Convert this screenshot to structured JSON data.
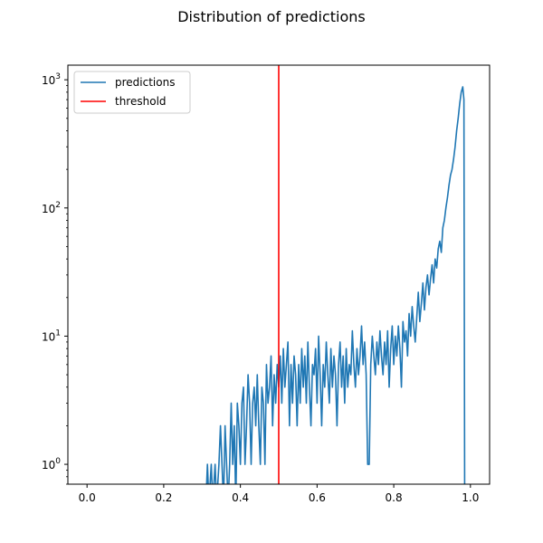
{
  "chart_data": {
    "type": "line",
    "title": "Distribution of predictions",
    "xlabel": "",
    "ylabel": "",
    "xlim": [
      -0.05,
      1.05
    ],
    "ylim": [
      0.7,
      1300
    ],
    "yscale": "log",
    "grid": false,
    "legend_placement": "top-left",
    "x_ticks": [
      0.0,
      0.2,
      0.4,
      0.6,
      0.8,
      1.0
    ],
    "x_tick_labels": [
      "0.0",
      "0.2",
      "0.4",
      "0.6",
      "0.8",
      "1.0"
    ],
    "y_ticks": [
      1,
      10,
      100,
      1000
    ],
    "y_tick_bases": [
      "10",
      "10",
      "10",
      "10"
    ],
    "y_tick_exponents": [
      "0",
      "1",
      "2",
      "3"
    ],
    "series": [
      {
        "name": "predictions",
        "color": "#1f77b4",
        "points": [
          [
            0.31,
            0.5
          ],
          [
            0.314,
            1
          ],
          [
            0.318,
            0.5
          ],
          [
            0.324,
            1
          ],
          [
            0.328,
            0.5
          ],
          [
            0.334,
            1
          ],
          [
            0.338,
            0.5
          ],
          [
            0.344,
            1
          ],
          [
            0.348,
            2
          ],
          [
            0.352,
            1
          ],
          [
            0.356,
            0.5
          ],
          [
            0.36,
            2
          ],
          [
            0.364,
            1
          ],
          [
            0.368,
            0.5
          ],
          [
            0.372,
            1
          ],
          [
            0.376,
            3
          ],
          [
            0.38,
            1
          ],
          [
            0.384,
            2
          ],
          [
            0.388,
            0.5
          ],
          [
            0.392,
            3
          ],
          [
            0.396,
            2
          ],
          [
            0.4,
            1
          ],
          [
            0.404,
            3
          ],
          [
            0.408,
            4
          ],
          [
            0.412,
            1
          ],
          [
            0.416,
            2
          ],
          [
            0.42,
            5
          ],
          [
            0.424,
            3
          ],
          [
            0.428,
            1
          ],
          [
            0.432,
            3
          ],
          [
            0.436,
            4
          ],
          [
            0.44,
            2
          ],
          [
            0.444,
            5
          ],
          [
            0.448,
            2
          ],
          [
            0.452,
            1
          ],
          [
            0.456,
            4
          ],
          [
            0.46,
            3
          ],
          [
            0.464,
            1
          ],
          [
            0.468,
            6
          ],
          [
            0.472,
            3
          ],
          [
            0.476,
            4
          ],
          [
            0.48,
            7
          ],
          [
            0.484,
            2
          ],
          [
            0.488,
            5
          ],
          [
            0.492,
            3
          ],
          [
            0.496,
            6
          ],
          [
            0.5,
            4
          ],
          [
            0.504,
            7
          ],
          [
            0.508,
            3
          ],
          [
            0.512,
            8
          ],
          [
            0.516,
            4
          ],
          [
            0.52,
            6
          ],
          [
            0.524,
            9
          ],
          [
            0.528,
            2
          ],
          [
            0.532,
            6
          ],
          [
            0.536,
            3
          ],
          [
            0.54,
            7
          ],
          [
            0.544,
            5
          ],
          [
            0.548,
            2
          ],
          [
            0.552,
            6
          ],
          [
            0.556,
            3
          ],
          [
            0.56,
            8
          ],
          [
            0.564,
            4
          ],
          [
            0.568,
            7
          ],
          [
            0.572,
            3
          ],
          [
            0.576,
            9
          ],
          [
            0.58,
            4
          ],
          [
            0.584,
            2
          ],
          [
            0.588,
            6
          ],
          [
            0.592,
            5
          ],
          [
            0.596,
            8
          ],
          [
            0.6,
            3
          ],
          [
            0.604,
            10
          ],
          [
            0.608,
            5
          ],
          [
            0.612,
            2
          ],
          [
            0.616,
            6
          ],
          [
            0.62,
            4
          ],
          [
            0.624,
            9
          ],
          [
            0.628,
            5
          ],
          [
            0.632,
            3
          ],
          [
            0.636,
            8
          ],
          [
            0.64,
            4
          ],
          [
            0.644,
            7
          ],
          [
            0.648,
            5
          ],
          [
            0.652,
            2
          ],
          [
            0.656,
            6
          ],
          [
            0.66,
            9
          ],
          [
            0.664,
            4
          ],
          [
            0.668,
            7
          ],
          [
            0.672,
            3
          ],
          [
            0.676,
            8
          ],
          [
            0.68,
            4
          ],
          [
            0.684,
            6
          ],
          [
            0.688,
            5
          ],
          [
            0.692,
            11
          ],
          [
            0.696,
            6
          ],
          [
            0.7,
            4
          ],
          [
            0.704,
            8
          ],
          [
            0.708,
            5
          ],
          [
            0.712,
            7
          ],
          [
            0.716,
            12
          ],
          [
            0.72,
            6
          ],
          [
            0.724,
            9
          ],
          [
            0.728,
            5
          ],
          [
            0.732,
            1
          ],
          [
            0.736,
            1
          ],
          [
            0.74,
            6
          ],
          [
            0.744,
            10
          ],
          [
            0.748,
            7
          ],
          [
            0.752,
            5
          ],
          [
            0.756,
            9
          ],
          [
            0.76,
            6
          ],
          [
            0.764,
            11
          ],
          [
            0.768,
            7
          ],
          [
            0.772,
            5
          ],
          [
            0.776,
            9
          ],
          [
            0.78,
            6
          ],
          [
            0.784,
            11
          ],
          [
            0.788,
            4
          ],
          [
            0.792,
            8
          ],
          [
            0.796,
            12
          ],
          [
            0.8,
            6
          ],
          [
            0.804,
            10
          ],
          [
            0.808,
            7
          ],
          [
            0.812,
            12
          ],
          [
            0.816,
            8
          ],
          [
            0.82,
            4
          ],
          [
            0.824,
            13
          ],
          [
            0.828,
            9
          ],
          [
            0.832,
            11
          ],
          [
            0.836,
            7
          ],
          [
            0.84,
            15
          ],
          [
            0.844,
            10
          ],
          [
            0.848,
            17
          ],
          [
            0.852,
            12
          ],
          [
            0.856,
            9
          ],
          [
            0.86,
            14
          ],
          [
            0.864,
            22
          ],
          [
            0.868,
            13
          ],
          [
            0.872,
            18
          ],
          [
            0.876,
            26
          ],
          [
            0.88,
            16
          ],
          [
            0.884,
            24
          ],
          [
            0.888,
            30
          ],
          [
            0.892,
            21
          ],
          [
            0.896,
            28
          ],
          [
            0.9,
            36
          ],
          [
            0.904,
            26
          ],
          [
            0.908,
            40
          ],
          [
            0.912,
            34
          ],
          [
            0.916,
            48
          ],
          [
            0.92,
            55
          ],
          [
            0.924,
            45
          ],
          [
            0.928,
            70
          ],
          [
            0.932,
            80
          ],
          [
            0.936,
            100
          ],
          [
            0.94,
            120
          ],
          [
            0.944,
            150
          ],
          [
            0.948,
            180
          ],
          [
            0.952,
            200
          ],
          [
            0.956,
            240
          ],
          [
            0.96,
            300
          ],
          [
            0.964,
            400
          ],
          [
            0.968,
            500
          ],
          [
            0.972,
            650
          ],
          [
            0.976,
            800
          ],
          [
            0.98,
            880
          ],
          [
            0.983,
            700
          ],
          [
            0.985,
            0.5
          ]
        ]
      },
      {
        "name": "threshold",
        "color": "#ff0000",
        "type": "vline",
        "x": 0.5
      }
    ]
  }
}
